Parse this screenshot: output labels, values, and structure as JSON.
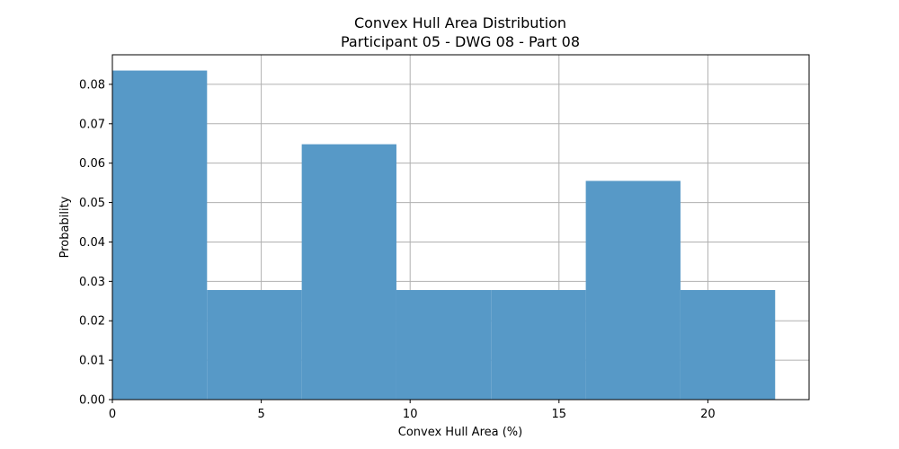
{
  "chart_data": {
    "type": "bar",
    "title_line1": "Convex Hull Area Distribution",
    "title_line2": "Participant 05 - DWG 08 - Part 08",
    "xlabel": "Convex Hull Area (%)",
    "ylabel": "Probability",
    "xlim": [
      0,
      23.4
    ],
    "ylim": [
      0,
      0.0875
    ],
    "grid": true,
    "bar_color": "#5799c7",
    "bins": [
      {
        "start": 0.0,
        "end": 3.18,
        "value": 0.0835
      },
      {
        "start": 3.18,
        "end": 6.36,
        "value": 0.0278
      },
      {
        "start": 6.36,
        "end": 9.54,
        "value": 0.0648
      },
      {
        "start": 9.54,
        "end": 12.72,
        "value": 0.0278
      },
      {
        "start": 12.72,
        "end": 15.9,
        "value": 0.0278
      },
      {
        "start": 15.9,
        "end": 19.08,
        "value": 0.0555
      },
      {
        "start": 19.08,
        "end": 22.26,
        "value": 0.0278
      }
    ],
    "xticks": [
      0,
      5,
      10,
      15,
      20
    ],
    "xtick_labels": [
      "0",
      "5",
      "10",
      "15",
      "20"
    ],
    "yticks": [
      0.0,
      0.01,
      0.02,
      0.03,
      0.04,
      0.05,
      0.06,
      0.07,
      0.08
    ],
    "ytick_labels": [
      "0.00",
      "0.01",
      "0.02",
      "0.03",
      "0.04",
      "0.05",
      "0.06",
      "0.07",
      "0.08"
    ]
  }
}
